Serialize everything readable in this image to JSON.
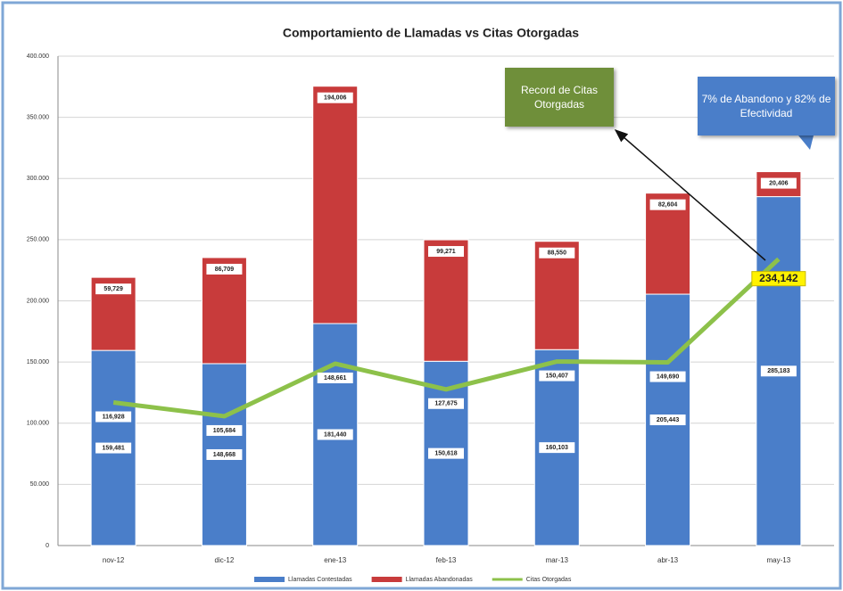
{
  "chart_data": {
    "type": "bar",
    "stacked": true,
    "title": "Comportamiento de Llamadas vs Citas Otorgadas",
    "categories": [
      "nov-12",
      "dic-12",
      "ene-13",
      "feb-13",
      "mar-13",
      "abr-13",
      "may-13"
    ],
    "series": [
      {
        "name": "Llamadas Contestadas",
        "color": "#4a7ec9",
        "values": [
          159481,
          148668,
          181440,
          150618,
          160103,
          205443,
          285183
        ],
        "value_labels": [
          "159,481",
          "148,668",
          "181,440",
          "150,618",
          "160,103",
          "205,443",
          "285,183"
        ]
      },
      {
        "name": "Llamadas Abandonadas",
        "color": "#c83b3b",
        "values": [
          59729,
          86709,
          194006,
          99271,
          88550,
          82604,
          20406
        ],
        "value_labels": [
          "59,729",
          "86,709",
          "194,006",
          "99,271",
          "88,550",
          "82,604",
          "20,406"
        ]
      },
      {
        "name": "Citas Otorgadas",
        "color": "#8dc14a",
        "type": "line",
        "values": [
          116928,
          105684,
          148661,
          127675,
          150407,
          149690,
          234142
        ],
        "value_labels": [
          "116,928",
          "105,684",
          "148,661",
          "127,675",
          "150,407",
          "149,690",
          "234,142"
        ]
      }
    ],
    "ylim": [
      0,
      400000
    ],
    "yticks": [
      0,
      {
        "value": 50000,
        "label": "50.000"
      },
      {
        "value": 100000,
        "label": "100.000"
      },
      {
        "value": 150000,
        "label": "150.000"
      },
      {
        "value": 200000,
        "label": "200.000"
      },
      {
        "value": 250000,
        "label": "250.000"
      },
      {
        "value": 300000,
        "label": "300.000"
      },
      {
        "value": 350000,
        "label": "350.000"
      },
      {
        "value": 400000,
        "label": "400.000"
      }
    ],
    "grid": true,
    "legend": "bottom",
    "annotations": [
      "Record de Citas Otorgadas",
      "7% de Abandono y 82% de Efectividad"
    ]
  }
}
